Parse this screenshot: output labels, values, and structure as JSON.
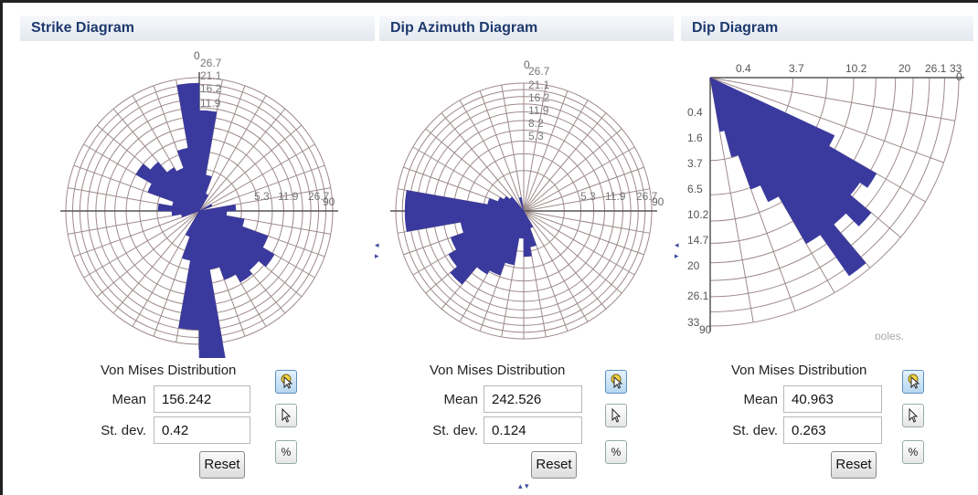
{
  "panels": [
    {
      "title": "Strike Diagram",
      "dist_label": "Von Mises Distribution",
      "mean_label": "Mean",
      "mean_value": "156.242",
      "std_label": "St. dev.",
      "std_value": "0.42",
      "reset_label": "Reset",
      "percent_label": "%",
      "axis_labels": {
        "top": "0",
        "right": "90"
      },
      "top_ticks": [
        "26.7",
        "21.1",
        "16.2",
        "11.9"
      ],
      "right_ticks": [
        "5.3",
        "11.9",
        "26.7"
      ]
    },
    {
      "title": "Dip Azimuth Diagram",
      "dist_label": "Von Mises Distribution",
      "mean_label": "Mean",
      "mean_value": "242.526",
      "std_label": "St. dev.",
      "std_value": "0.124",
      "reset_label": "Reset",
      "percent_label": "%",
      "axis_labels": {
        "top": "0",
        "right": "90"
      },
      "top_ticks": [
        "26.7",
        "21.1",
        "16.2",
        "11.9",
        "8.2",
        "5.3"
      ],
      "right_ticks": [
        "5.3",
        "11.9",
        "26.7"
      ]
    },
    {
      "title": "Dip Diagram",
      "dist_label": "Von Mises Distribution",
      "mean_label": "Mean",
      "mean_value": "40.963",
      "std_label": "St. dev.",
      "std_value": "0.263",
      "reset_label": "Reset",
      "percent_label": "%",
      "top_ticks": [
        "0.4",
        "3.7",
        "10.2",
        "20",
        "26.1",
        "33"
      ],
      "left_ticks": [
        "0.4",
        "1.6",
        "3.7",
        "6.5",
        "10.2",
        "14.7",
        "20",
        "26.1",
        "33"
      ],
      "corner_right": "0",
      "corner_bottom": "90",
      "partial_text": "poles."
    }
  ],
  "colors": {
    "petal": "#3a3a9e",
    "grid": "#9e8a8a",
    "header_text": "#1e3a6e"
  },
  "icons": [
    "select-icon",
    "pointer-icon",
    "percent-icon"
  ]
}
